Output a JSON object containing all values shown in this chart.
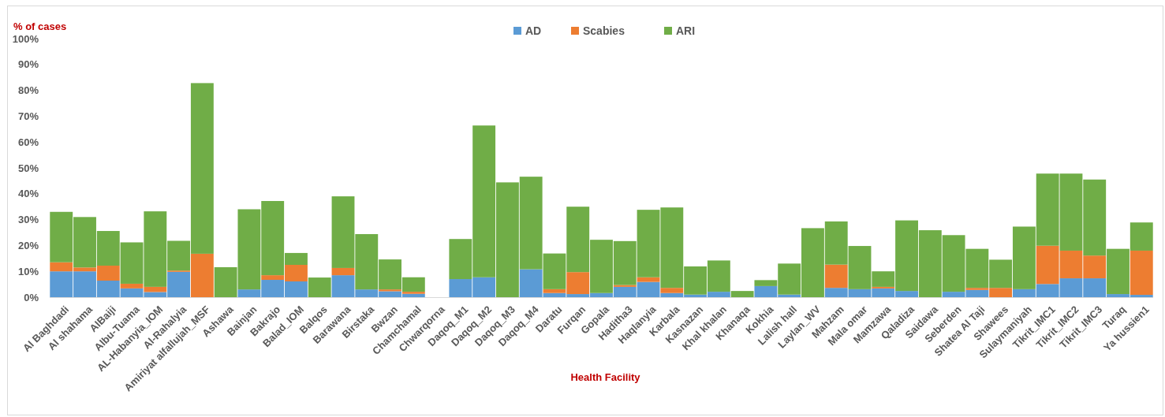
{
  "chart_data": {
    "type": "bar",
    "stacked": true,
    "xlabel": "Health Facility",
    "ylabel": "% of cases",
    "legend": "top",
    "grid": false,
    "categories": [
      "Al Baghdadi",
      "Al shahama",
      "AlBaiji",
      "Albu-Tuama",
      "AL-Habanyia_IOM",
      "Al-Rahalyia",
      "Amiriyat alfallujah_MSF",
      "Ashawa",
      "Bainjan",
      "Bakrajo",
      "Balad_IOM",
      "Balqos",
      "Barawana",
      "Birstaka",
      "Bwzan",
      "Chamchamal",
      "Chwarqorna",
      "Daqoq_M1",
      "Daqoq_M2",
      "Daqoq_M3",
      "Daqoq_M4",
      "Daratu",
      "Furqan",
      "Gopala",
      "Haditha3",
      "Haqlanyia",
      "Karbala",
      "Kasnazan",
      "Khal khalan",
      "Khanaqa",
      "Kokhia",
      "Lalish hall",
      "Laylan_WV",
      "Mahzam",
      "Mala omar",
      "Mamzawa",
      "Qaladiza",
      "Saidawa",
      "Seberden",
      "Shatea Al Taji",
      "Shawees",
      "Sulaymaniyah",
      "Tikrit_IMC1",
      "Tikrit_IMC2",
      "Tikrit_IMC3",
      "Turaq",
      "Ya hussien1"
    ],
    "series": [
      {
        "name": "AD",
        "color": "#5b9bd5",
        "values": [
          10,
          10,
          6.4,
          3.4,
          2,
          9.8,
          0,
          0,
          3,
          6.7,
          6.1,
          0,
          8.5,
          3,
          2.3,
          1.3,
          0,
          7,
          7.7,
          0,
          10.8,
          1.6,
          1.2,
          1.6,
          4,
          5.9,
          1.6,
          1,
          2.1,
          0,
          4.3,
          1,
          0,
          3.6,
          3.1,
          3.4,
          2.4,
          0,
          2.1,
          2.8,
          0,
          3.1,
          5.1,
          7.3,
          7.3,
          1.2,
          0.9
        ]
      },
      {
        "name": "Scabies",
        "color": "#ed7d31",
        "values": [
          3.5,
          1.5,
          5.8,
          1.8,
          2,
          0.5,
          16.8,
          0,
          0,
          1.8,
          6.4,
          0,
          2.8,
          0,
          0.7,
          0.8,
          0,
          0,
          0,
          0,
          0,
          1.5,
          8.5,
          0,
          0.7,
          1.8,
          2,
          0,
          0,
          0,
          0,
          0,
          0,
          9,
          0,
          0.6,
          0,
          0,
          0,
          0.8,
          3.6,
          0,
          14.8,
          10.7,
          8.8,
          0,
          17.1
        ]
      },
      {
        "name": "ARI",
        "color": "#70ad47",
        "values": [
          19.5,
          19.5,
          13.4,
          16,
          29.2,
          11.5,
          66,
          11.6,
          31,
          28.7,
          4.6,
          7.6,
          27.7,
          21.4,
          11.6,
          5.6,
          0,
          15.5,
          58.7,
          44.4,
          35.8,
          13.8,
          25.3,
          20.6,
          17,
          26.1,
          31.1,
          10.9,
          12.1,
          2.4,
          2.3,
          12,
          26.7,
          16.7,
          16.7,
          6,
          27.3,
          25.9,
          21.9,
          15.1,
          10.9,
          24.2,
          27.9,
          29.8,
          29.4,
          17.5,
          10.9
        ]
      }
    ],
    "ylim": [
      0,
      100
    ],
    "yticks": [
      {
        "value": 0,
        "label": "0%"
      },
      {
        "value": 10,
        "label": "10%"
      },
      {
        "value": 20,
        "label": "20%"
      },
      {
        "value": 30,
        "label": "30%"
      },
      {
        "value": 40,
        "label": "40%"
      },
      {
        "value": 50,
        "label": "50%"
      },
      {
        "value": 60,
        "label": "60%"
      },
      {
        "value": 70,
        "label": "70%"
      },
      {
        "value": 80,
        "label": "80%"
      },
      {
        "value": 90,
        "label": "90%"
      },
      {
        "value": 100,
        "label": "100%"
      }
    ]
  }
}
